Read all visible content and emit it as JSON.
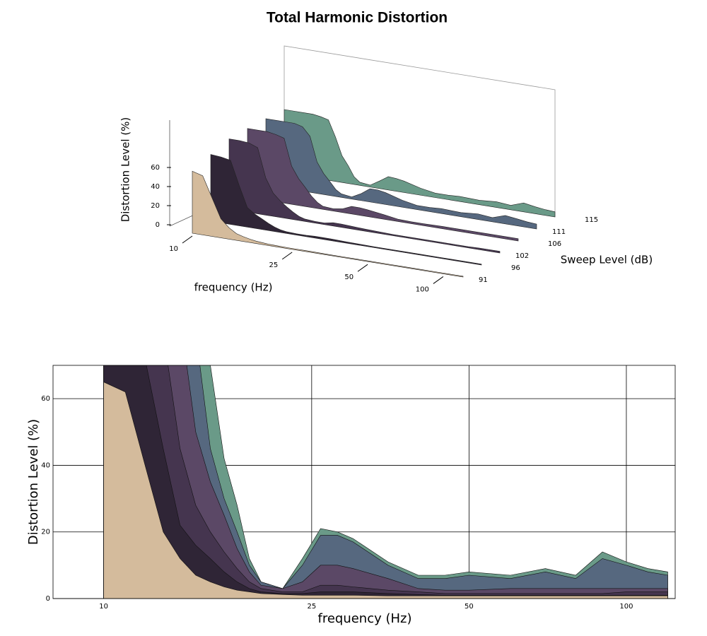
{
  "chart_data": [
    {
      "type": "waterfall3d",
      "title": "Total Harmonic Distortion",
      "zlabel": "Distortion Level (%)",
      "xlabel": "frequency (Hz)",
      "ylabel": "Sweep Level (dB)",
      "log_x": true,
      "xlim": [
        10,
        120
      ],
      "xticks": [
        10,
        25,
        50,
        100
      ],
      "zlim": [
        0,
        100
      ],
      "zticks": [
        0,
        20,
        40,
        60
      ],
      "x": [
        10,
        11,
        12,
        13,
        14,
        15,
        16,
        17,
        18,
        19,
        20,
        22,
        24,
        26,
        28,
        30,
        35,
        40,
        45,
        50,
        60,
        70,
        80,
        90,
        100,
        110,
        120
      ],
      "series": [
        {
          "name": "91",
          "color": "#d4bb9c",
          "values": [
            65,
            62,
            40,
            20,
            12,
            7,
            5,
            3.5,
            2.5,
            2,
            1.5,
            1.2,
            1,
            1,
            1,
            1,
            0.8,
            0.8,
            0.8,
            0.8,
            0.8,
            0.8,
            0.8,
            0.8,
            0.8,
            0.8,
            0.8
          ]
        },
        {
          "name": "96",
          "color": "#2f2536",
          "values": [
            75,
            74,
            72,
            45,
            22,
            16,
            12,
            8,
            5,
            3,
            2,
            1.5,
            1.5,
            2,
            2,
            2,
            1.5,
            1.2,
            1,
            1,
            1,
            1,
            1,
            1,
            1,
            1,
            1
          ]
        },
        {
          "name": "102",
          "color": "#45354f",
          "values": [
            85,
            85,
            84,
            80,
            45,
            28,
            20,
            14,
            9,
            5,
            3,
            2,
            2,
            4,
            4,
            3.5,
            2.5,
            2,
            1.5,
            1.5,
            1.5,
            1.5,
            1.5,
            1.5,
            2,
            2,
            2
          ]
        },
        {
          "name": "106",
          "color": "#5b4866",
          "values": [
            90,
            90,
            90,
            88,
            85,
            50,
            35,
            25,
            15,
            8,
            4,
            3,
            5,
            10,
            10,
            9,
            6,
            3,
            2.5,
            2.5,
            3,
            3,
            3,
            3,
            3,
            3,
            3
          ]
        },
        {
          "name": "111",
          "color": "#56687f",
          "values": [
            95,
            95,
            95,
            95,
            92,
            80,
            45,
            30,
            20,
            10,
            5,
            3,
            10,
            19,
            19,
            17,
            10,
            6,
            6,
            7,
            6,
            8,
            6,
            12,
            10,
            8,
            7
          ]
        },
        {
          "name": "115",
          "color": "#6a9a88",
          "values": [
            100,
            100,
            100,
            100,
            98,
            95,
            70,
            42,
            28,
            12,
            5,
            3,
            12,
            21,
            20,
            18,
            11,
            7,
            7,
            8,
            7,
            9,
            7,
            14,
            11,
            9,
            8
          ]
        }
      ]
    },
    {
      "type": "area",
      "ylabel": "Distortion Level (%)",
      "xlabel": "frequency (Hz)",
      "log_x": true,
      "xlim": [
        8,
        124
      ],
      "xticks": [
        10,
        25,
        50,
        100
      ],
      "ylim": [
        0,
        70
      ],
      "yticks": [
        0,
        20,
        40,
        60
      ],
      "grid": true
    }
  ]
}
